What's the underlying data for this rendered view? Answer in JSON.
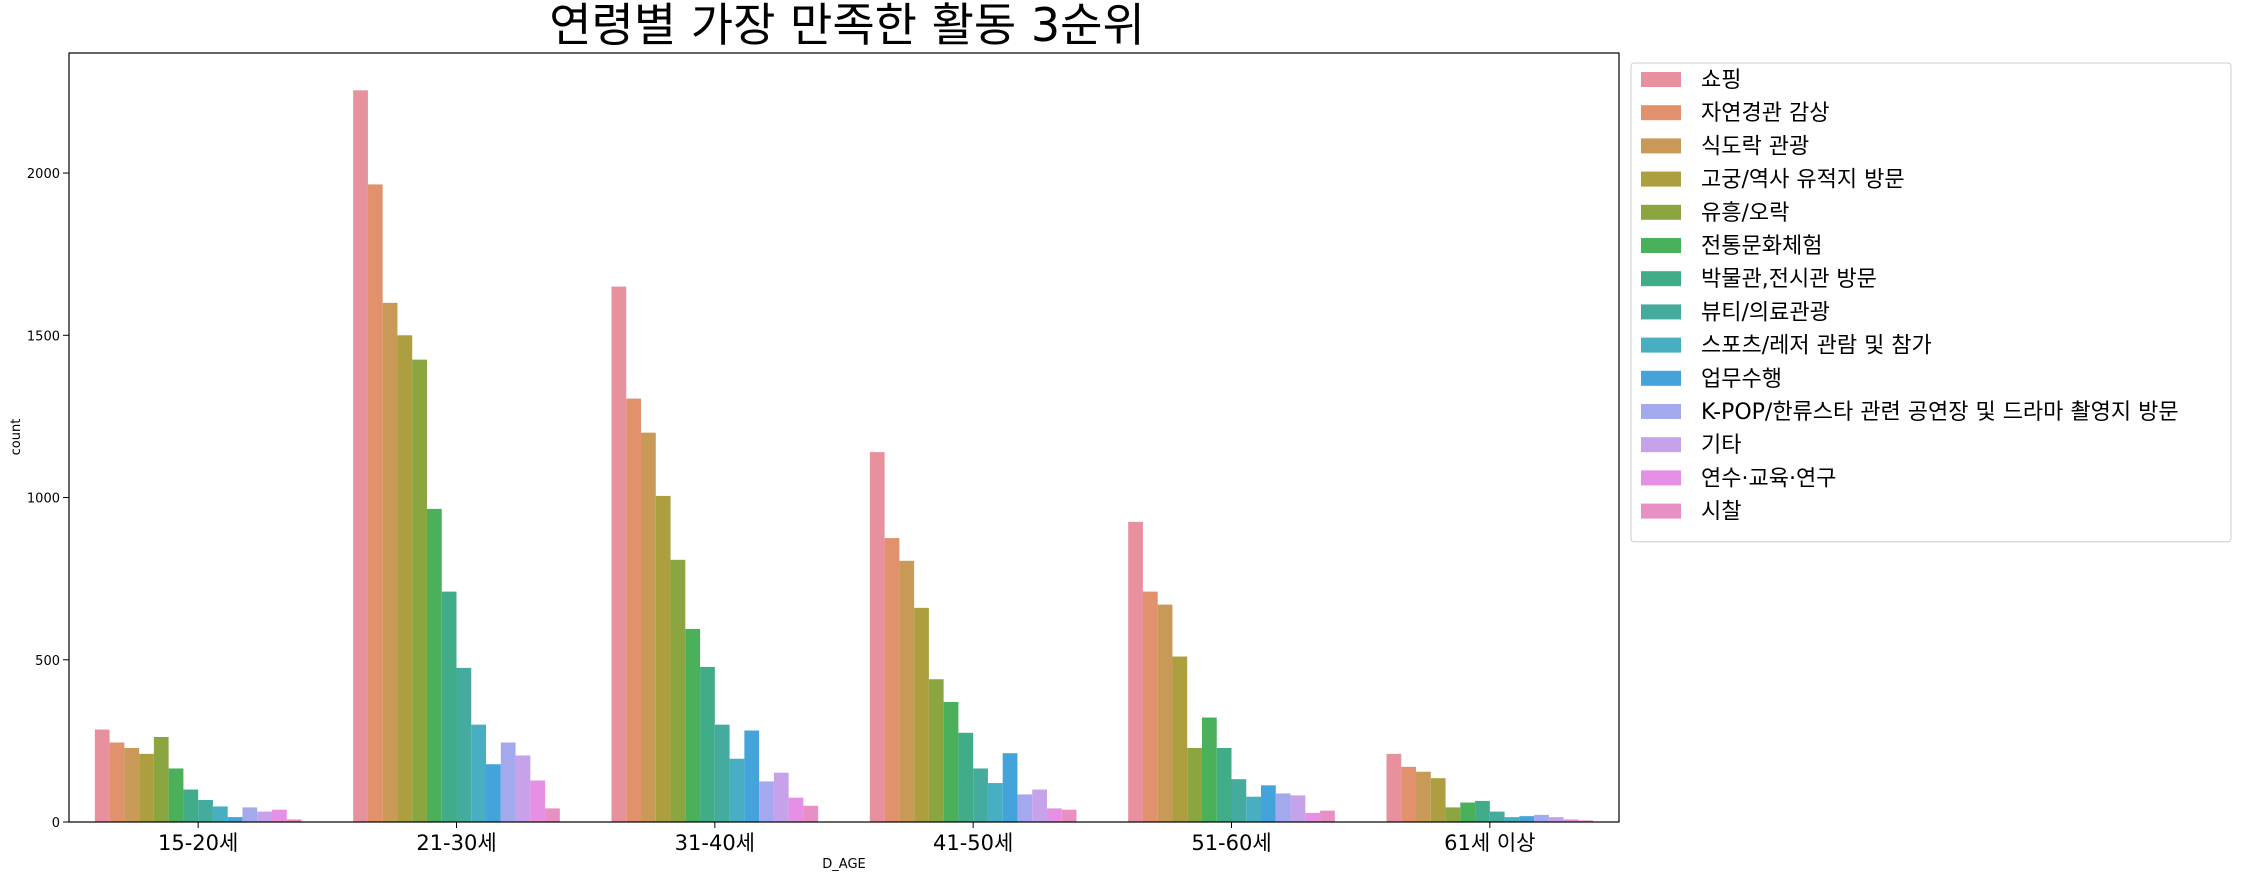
{
  "chart_data": {
    "type": "bar",
    "title": "연령별 가장 만족한 활동 3순위",
    "xlabel": "D_AGE",
    "ylabel": "count",
    "ylim": [
      0,
      2370
    ],
    "yticks": [
      0,
      500,
      1000,
      1500,
      2000
    ],
    "grid": false,
    "legend_position": "outside-right",
    "categories": [
      "15-20세",
      "21-30세",
      "31-40세",
      "41-50세",
      "51-60세",
      "61세 이상"
    ],
    "series": [
      {
        "name": "쇼핑",
        "color": "#e8919e",
        "values": [
          285,
          2255,
          1650,
          1140,
          925,
          210
        ]
      },
      {
        "name": "자연경관 감상",
        "color": "#e1916c",
        "values": [
          245,
          1965,
          1305,
          875,
          710,
          170
        ]
      },
      {
        "name": "식도락 관광",
        "color": "#c99a57",
        "values": [
          228,
          1600,
          1200,
          805,
          670,
          155
        ]
      },
      {
        "name": "고궁/역사 유적지 방문",
        "color": "#ad9f40",
        "values": [
          210,
          1500,
          1005,
          660,
          510,
          135
        ]
      },
      {
        "name": "유흥/오락",
        "color": "#8ba641",
        "values": [
          262,
          1425,
          808,
          440,
          228,
          45
        ]
      },
      {
        "name": "전통문화체험",
        "color": "#4ab05a",
        "values": [
          165,
          965,
          595,
          370,
          322,
          60
        ]
      },
      {
        "name": "박물관,전시관 방문",
        "color": "#40ad88",
        "values": [
          100,
          710,
          478,
          275,
          228,
          65
        ]
      },
      {
        "name": "뷰티/의료관광",
        "color": "#44ab9e",
        "values": [
          68,
          475,
          300,
          165,
          132,
          32
        ]
      },
      {
        "name": "스포츠/레저 관람 및 참가",
        "color": "#48aec2",
        "values": [
          48,
          300,
          195,
          120,
          78,
          15
        ]
      },
      {
        "name": "업무수행",
        "color": "#43a3da",
        "values": [
          15,
          178,
          282,
          212,
          113,
          18
        ]
      },
      {
        "name": "K-POP/한류스타 관련 공연장 및 드라마 촬영지 방문",
        "color": "#a3a9ec",
        "values": [
          45,
          245,
          125,
          85,
          88,
          22
        ]
      },
      {
        "name": "기타",
        "color": "#c6a2ea",
        "values": [
          32,
          205,
          152,
          100,
          82,
          15
        ]
      },
      {
        "name": "연수·교육·연구",
        "color": "#e590e4",
        "values": [
          38,
          128,
          75,
          42,
          28,
          8
        ]
      },
      {
        "name": "시찰",
        "color": "#e890c4",
        "values": [
          8,
          42,
          50,
          38,
          35,
          5
        ]
      }
    ]
  }
}
